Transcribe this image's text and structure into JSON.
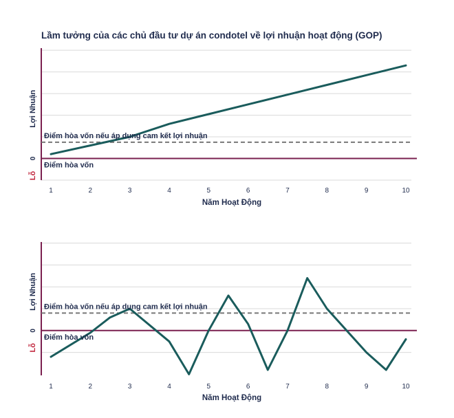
{
  "title": "Lầm tưởng của các chủ đầu tư dự án condotel về lợi nhuận hoạt động (GOP)",
  "colors": {
    "line": "#1a5c5c",
    "axis": "#7a1f4f",
    "dashed": "#777777",
    "grid": "#d9d9d9",
    "text": "#1f2b4d",
    "loss": "#c0253c"
  },
  "chart_data": [
    {
      "type": "line",
      "xlabel": "Năm Hoạt Động",
      "ylabel": "Lợi Nhuận",
      "loss_label": "Lỗ",
      "zero_label": "0",
      "x_ticks": [
        1,
        2,
        3,
        4,
        5,
        6,
        7,
        8,
        9,
        10
      ],
      "xlim": [
        0.75,
        10.3
      ],
      "ylim": [
        -1.0,
        5.1
      ],
      "gridlines": [
        -1,
        1,
        2,
        3,
        4,
        5
      ],
      "grid": true,
      "annotations": [
        {
          "text": "Điểm hòa vốn nếu áp dụng cam kết lợi nhuận",
          "y": 0.75,
          "dashed": true
        },
        {
          "text": "Điểm hòa vốn",
          "y": 0,
          "dashed": false
        }
      ],
      "series": [
        {
          "points": [
            [
              1,
              0.2
            ],
            [
              2,
              0.6
            ],
            [
              3,
              1.0
            ],
            [
              4,
              1.6
            ],
            [
              5,
              2.05
            ],
            [
              6,
              2.5
            ],
            [
              7,
              2.95
            ],
            [
              8,
              3.4
            ],
            [
              9,
              3.85
            ],
            [
              10,
              4.3
            ]
          ]
        }
      ]
    },
    {
      "type": "line",
      "xlabel": "Năm Hoạt Động",
      "ylabel": "Lợi Nhuận",
      "loss_label": "Lỗ",
      "zero_label": "0",
      "x_ticks": [
        1,
        2,
        3,
        4,
        5,
        6,
        7,
        8,
        9,
        10
      ],
      "xlim": [
        0.75,
        10.3
      ],
      "ylim": [
        -2.05,
        4.05
      ],
      "gridlines": [
        -1,
        1,
        2,
        3,
        4
      ],
      "grid": true,
      "annotations": [
        {
          "text": "Điểm hòa vốn nếu áp dụng cam kết lợi nhuận",
          "y": 0.8,
          "dashed": true
        },
        {
          "text": "Điểm hòa vốn",
          "y": 0,
          "dashed": false
        }
      ],
      "series": [
        {
          "points": [
            [
              1,
              -1.2
            ],
            [
              2,
              -0.1
            ],
            [
              2.5,
              0.6
            ],
            [
              3,
              1.0
            ],
            [
              4,
              -0.5
            ],
            [
              4.5,
              -2.0
            ],
            [
              5,
              0.0
            ],
            [
              5.5,
              1.6
            ],
            [
              6,
              0.3
            ],
            [
              6.5,
              -1.8
            ],
            [
              7,
              0.0
            ],
            [
              7.5,
              2.4
            ],
            [
              8,
              1.0
            ],
            [
              9,
              -1.0
            ],
            [
              9.5,
              -1.8
            ],
            [
              10,
              -0.4
            ]
          ]
        }
      ]
    }
  ]
}
